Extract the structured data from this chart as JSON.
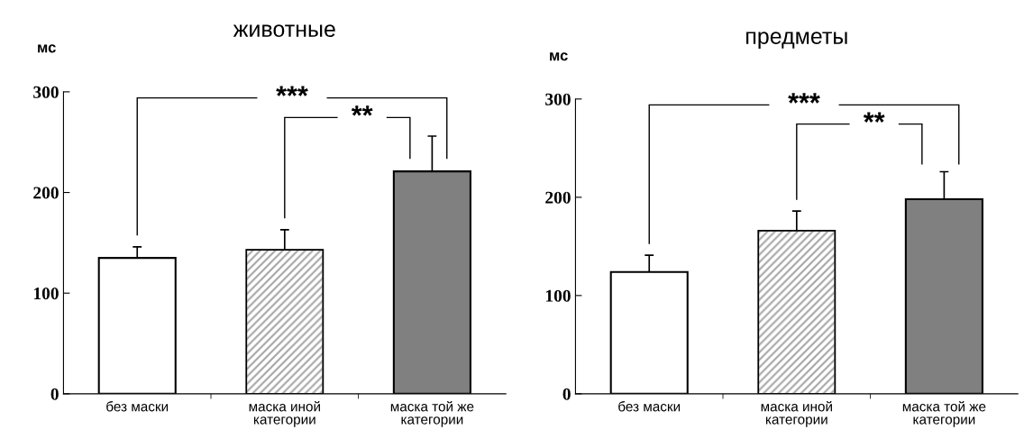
{
  "chart_data": [
    {
      "type": "bar",
      "title": "животные",
      "ylabel": "мс",
      "categories": [
        "без маски",
        "маска иной\nкатегории",
        "маска той же\nкатегории"
      ],
      "values": [
        135,
        143,
        221
      ],
      "errors": [
        [
          135,
          146
        ],
        [
          143,
          163
        ],
        [
          221,
          256
        ]
      ],
      "colors": [
        "#ffffff",
        "#a6a6a6",
        "#808080"
      ],
      "ylim": [
        0,
        300
      ],
      "yticks": [
        0,
        100,
        200,
        300
      ],
      "grid": false,
      "annotations": [
        "***",
        "**"
      ]
    },
    {
      "type": "bar",
      "title": "предметы",
      "ylabel": "мс",
      "categories": [
        "без маски",
        "маска иной\nкатегории",
        "маска той же\nкатегории"
      ],
      "values": [
        124,
        166,
        198
      ],
      "errors": [
        [
          124,
          141
        ],
        [
          166,
          186
        ],
        [
          198,
          226
        ]
      ],
      "colors": [
        "#ffffff",
        "#a6a6a6",
        "#808080"
      ],
      "ylim": [
        0,
        300
      ],
      "yticks": [
        0,
        100,
        200,
        300
      ],
      "grid": false,
      "annotations": [
        "***",
        "**"
      ]
    }
  ]
}
